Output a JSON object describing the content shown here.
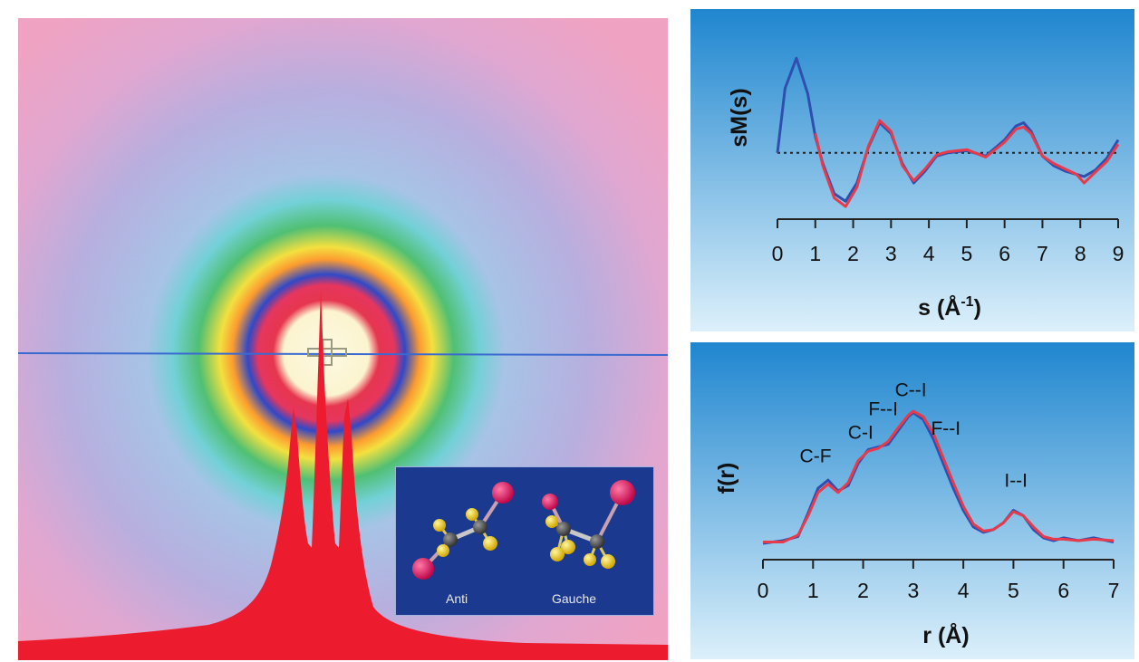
{
  "colors": {
    "panel_bg_top": "#1f86cf",
    "panel_bg_bottom": "#dcf0fb",
    "theory_line": "#2f4fb0",
    "experiment_line": "#e83a4a",
    "pattern_background": "#f2a2c3",
    "inset_bg": "#1b3a8f",
    "iodine_atom": "#e0105a",
    "carbon_atom": "#5a5a5a",
    "fluorine_atom": "#f0d020"
  },
  "diffraction": {
    "inset": {
      "labels": [
        "Anti",
        "Gauche"
      ]
    }
  },
  "chart_data": [
    {
      "type": "line",
      "xlabel": "s (Å",
      "xlabel_sup": "-1",
      "xlabel_end": ")",
      "ylabel": "sM(s)",
      "xlim": [
        0,
        9
      ],
      "ylim": [
        -0.6,
        1.0
      ],
      "xticks": [
        "0",
        "1",
        "2",
        "3",
        "4",
        "5",
        "6",
        "7",
        "8",
        "9"
      ],
      "zero_line": "dotted",
      "series": [
        {
          "color": "#2f4fb0",
          "x": [
            0,
            0.2,
            0.5,
            0.8,
            1.0,
            1.2,
            1.5,
            1.8,
            2.1,
            2.4,
            2.7,
            3.0,
            3.3,
            3.6,
            3.9,
            4.2,
            4.5,
            5.0,
            5.5,
            6.0,
            6.3,
            6.5,
            6.7,
            7.0,
            7.3,
            7.6,
            7.9,
            8.1,
            8.4,
            8.7,
            9.0
          ],
          "y": [
            0.0,
            0.6,
            0.88,
            0.55,
            0.15,
            -0.1,
            -0.38,
            -0.45,
            -0.28,
            0.05,
            0.28,
            0.18,
            -0.1,
            -0.28,
            -0.17,
            -0.03,
            0.0,
            0.02,
            -0.03,
            0.12,
            0.25,
            0.28,
            0.2,
            -0.03,
            -0.12,
            -0.17,
            -0.2,
            -0.22,
            -0.16,
            -0.05,
            0.12
          ]
        },
        {
          "color": "#e83a4a",
          "x": [
            1.0,
            1.2,
            1.5,
            1.8,
            2.1,
            2.4,
            2.7,
            3.0,
            3.3,
            3.6,
            3.9,
            4.2,
            4.5,
            5.0,
            5.5,
            6.0,
            6.3,
            6.5,
            6.7,
            7.0,
            7.3,
            7.6,
            7.9,
            8.1,
            8.4,
            8.7,
            9.0
          ],
          "y": [
            0.18,
            -0.12,
            -0.42,
            -0.5,
            -0.32,
            0.06,
            0.3,
            0.2,
            -0.12,
            -0.26,
            -0.15,
            -0.02,
            0.01,
            0.03,
            -0.04,
            0.1,
            0.22,
            0.24,
            0.18,
            -0.03,
            -0.1,
            -0.15,
            -0.2,
            -0.28,
            -0.18,
            -0.08,
            0.08
          ]
        }
      ]
    },
    {
      "type": "line",
      "xlabel": "r (Å)",
      "ylabel": "f(r)",
      "xlim": [
        0,
        7
      ],
      "ylim": [
        0,
        1.0
      ],
      "xticks": [
        "0",
        "1",
        "2",
        "3",
        "4",
        "5",
        "6",
        "7"
      ],
      "annotations": [
        {
          "text": "C-F",
          "x": 1.05,
          "y": 0.59
        },
        {
          "text": "C-I",
          "x": 1.95,
          "y": 0.76
        },
        {
          "text": "F--I",
          "x": 2.4,
          "y": 0.93
        },
        {
          "text": "C--I",
          "x": 2.95,
          "y": 1.07
        },
        {
          "text": "F--I",
          "x": 3.65,
          "y": 0.79
        },
        {
          "text": "I--I",
          "x": 5.05,
          "y": 0.41
        }
      ],
      "series": [
        {
          "color": "#2f4fb0",
          "x": [
            0,
            0.4,
            0.7,
            0.9,
            1.1,
            1.3,
            1.5,
            1.7,
            1.9,
            2.1,
            2.3,
            2.5,
            2.7,
            2.9,
            3.0,
            3.2,
            3.4,
            3.6,
            3.8,
            4.0,
            4.2,
            4.4,
            4.6,
            4.8,
            5.0,
            5.2,
            5.4,
            5.6,
            5.8,
            6.0,
            6.3,
            6.6,
            7.0
          ],
          "y": [
            0.0,
            0.02,
            0.05,
            0.22,
            0.4,
            0.46,
            0.38,
            0.42,
            0.58,
            0.68,
            0.7,
            0.72,
            0.82,
            0.92,
            0.95,
            0.9,
            0.76,
            0.58,
            0.4,
            0.24,
            0.12,
            0.08,
            0.1,
            0.15,
            0.24,
            0.2,
            0.1,
            0.04,
            0.02,
            0.04,
            0.02,
            0.04,
            0.01
          ]
        },
        {
          "color": "#e83a4a",
          "x": [
            0,
            0.4,
            0.7,
            0.9,
            1.1,
            1.3,
            1.5,
            1.7,
            1.9,
            2.1,
            2.3,
            2.5,
            2.7,
            2.9,
            3.0,
            3.2,
            3.4,
            3.6,
            3.8,
            4.0,
            4.2,
            4.4,
            4.6,
            4.8,
            5.0,
            5.2,
            5.4,
            5.6,
            5.8,
            6.0,
            6.3,
            6.6,
            7.0
          ],
          "y": [
            0.01,
            0.01,
            0.06,
            0.2,
            0.37,
            0.43,
            0.37,
            0.44,
            0.6,
            0.67,
            0.69,
            0.74,
            0.84,
            0.93,
            0.96,
            0.92,
            0.8,
            0.62,
            0.44,
            0.27,
            0.14,
            0.09,
            0.1,
            0.15,
            0.23,
            0.2,
            0.12,
            0.05,
            0.03,
            0.03,
            0.02,
            0.03,
            0.02
          ]
        }
      ]
    }
  ]
}
